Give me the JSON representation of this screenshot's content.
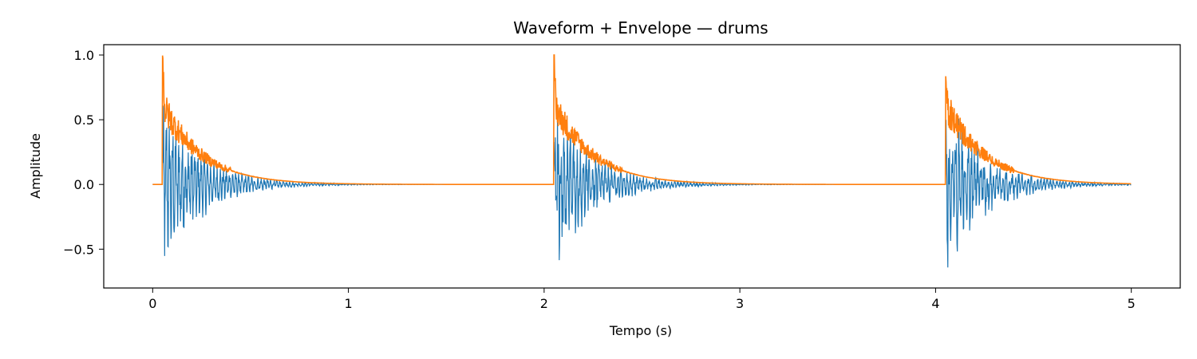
{
  "chart_data": {
    "type": "line",
    "title": "Waveform + Envelope — drums",
    "xlabel": "Tempo (s)",
    "ylabel": "Amplitude",
    "xlim": [
      -0.25,
      5.25
    ],
    "ylim": [
      -0.8,
      1.08
    ],
    "xticks": [
      0,
      1,
      2,
      3,
      4,
      5
    ],
    "xtick_labels": [
      "0",
      "1",
      "2",
      "3",
      "4",
      "5"
    ],
    "yticks": [
      -0.5,
      0.0,
      0.5,
      1.0
    ],
    "ytick_labels": [
      "−0.5",
      "0.0",
      "0.5",
      "1.0"
    ],
    "grid": false,
    "legend": "none",
    "hits": [
      0.05,
      2.05,
      4.05
    ],
    "duration": 5.0,
    "series": [
      {
        "id": "waveform",
        "color": "#1f77b4",
        "peak_max": 0.63,
        "peak_min": -0.72,
        "decay_time": 0.2
      },
      {
        "id": "envelope",
        "color": "#ff7f0e",
        "peak": 1.0,
        "decay_time": 0.2
      }
    ]
  }
}
